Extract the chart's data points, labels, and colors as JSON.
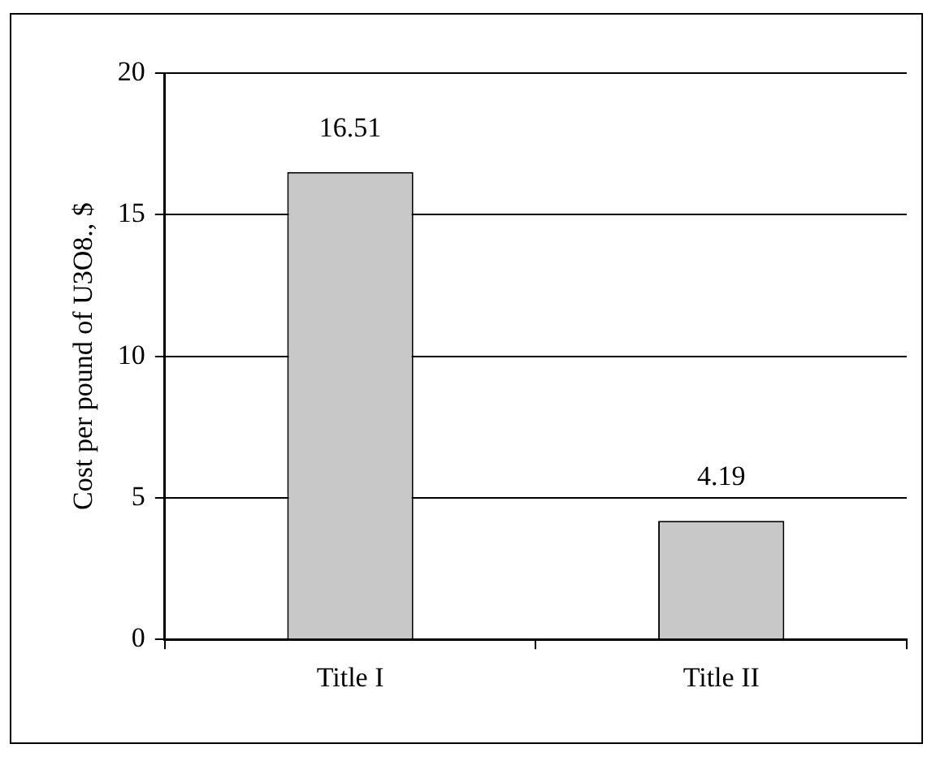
{
  "chart_data": {
    "type": "bar",
    "ylabel": "Cost per pound of U3O8., $",
    "categories": [
      "Title I",
      "Title II"
    ],
    "values": [
      16.51,
      4.19
    ],
    "color": "#c8c8c8",
    "ylim": [
      0,
      20
    ],
    "yticks": [
      0,
      5,
      10,
      15,
      20
    ],
    "grid": "y",
    "legend": false,
    "data_labels": true
  }
}
